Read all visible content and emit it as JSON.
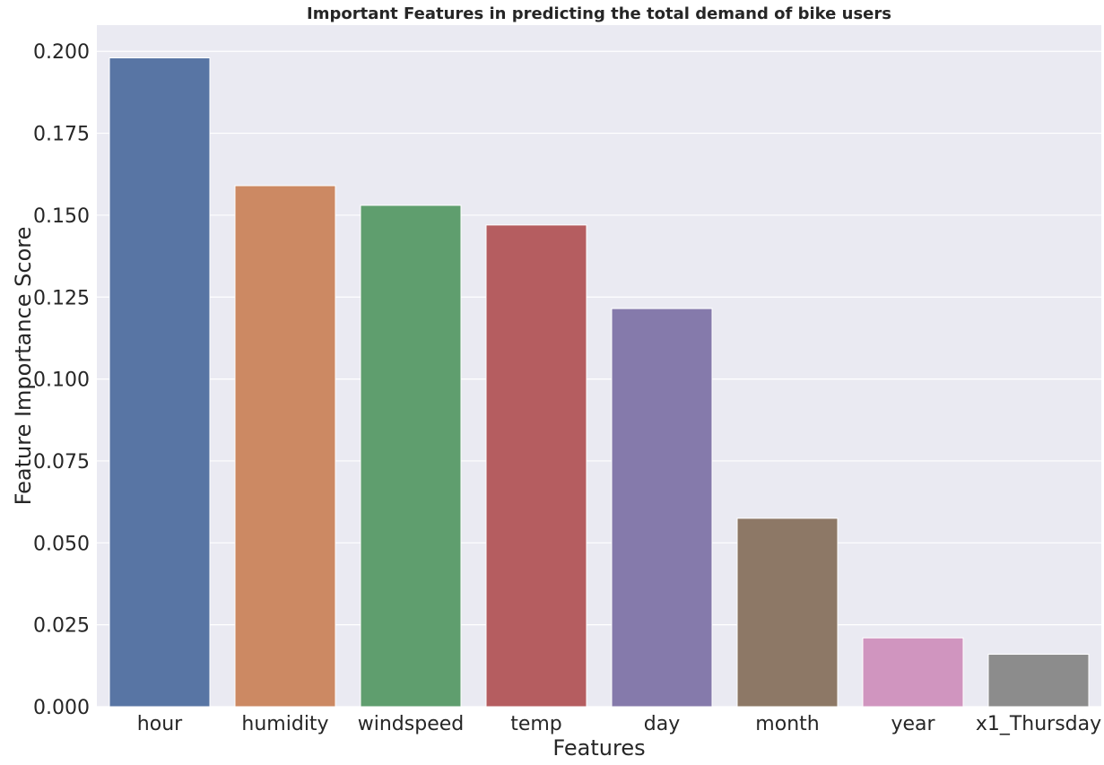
{
  "chart_data": {
    "type": "bar",
    "title": "Important Features in predicting the total demand of bike users",
    "xlabel": "Features",
    "ylabel": "Feature Importance Score",
    "categories": [
      "hour",
      "humidity",
      "windspeed",
      "temp",
      "day",
      "month",
      "year",
      "x1_Thursday"
    ],
    "values": [
      0.198,
      0.159,
      0.153,
      0.147,
      0.1215,
      0.0575,
      0.021,
      0.016
    ],
    "colors": [
      "#5875a4",
      "#cc8963",
      "#5f9e6e",
      "#b55d60",
      "#857aab",
      "#8d7866",
      "#d095bf",
      "#8c8c8c"
    ],
    "ylim": [
      0,
      0.208
    ],
    "yticks": [
      "0.000",
      "0.025",
      "0.050",
      "0.075",
      "0.100",
      "0.125",
      "0.150",
      "0.175",
      "0.200"
    ],
    "ytick_values": [
      0,
      0.025,
      0.05,
      0.075,
      0.1,
      0.125,
      0.15,
      0.175,
      0.2
    ],
    "grid": true,
    "background_color": "#eaeaf2",
    "grid_color": "#ffffff"
  }
}
